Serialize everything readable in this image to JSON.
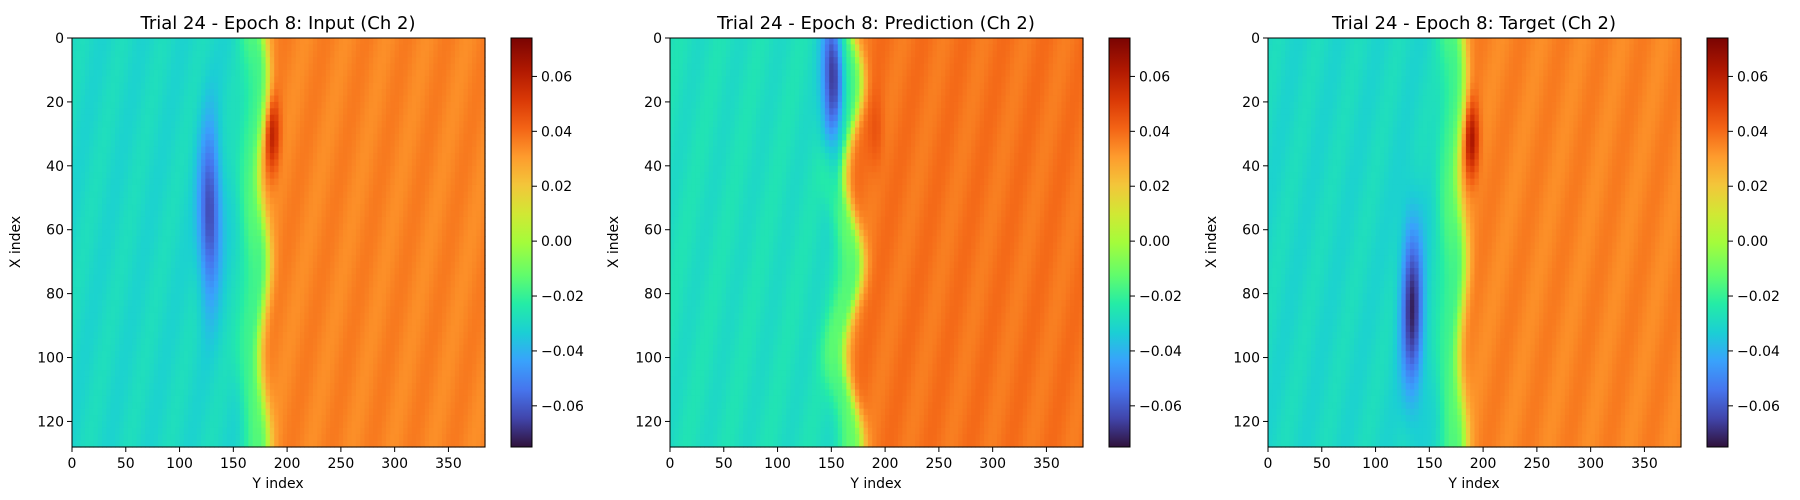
{
  "figure": {
    "panels": [
      {
        "id": "input",
        "title": "Trial 24 - Epoch 8: Input (Ch 2)"
      },
      {
        "id": "prediction",
        "title": "Trial 24 - Epoch 8: Prediction (Ch 2)"
      },
      {
        "id": "target",
        "title": "Trial 24 - Epoch 8: Target (Ch 2)"
      }
    ]
  },
  "chart_data": [
    {
      "type": "heatmap",
      "title": "Trial 24 - Epoch 8: Input (Ch 2)",
      "xlabel": "Y index",
      "ylabel": "X index",
      "xlim": [
        0,
        384
      ],
      "ylim": [
        128,
        0
      ],
      "xticks": [
        0,
        50,
        100,
        150,
        200,
        250,
        300,
        350
      ],
      "yticks": [
        0,
        20,
        40,
        60,
        80,
        100,
        120
      ],
      "colormap": "turbo",
      "colorbar": {
        "vmin": -0.075,
        "vmax": 0.074,
        "ticks": [
          -0.06,
          -0.04,
          -0.02,
          0.0,
          0.02,
          0.04,
          0.06
        ],
        "tick_labels": [
          "−0.06",
          "−0.04",
          "−0.02",
          "0.00",
          "0.02",
          "0.04",
          "0.06"
        ]
      },
      "field": {
        "front_y": 178,
        "front_amplitude": 4,
        "dip_center": [
          55,
          128
        ],
        "dip_value": -0.065,
        "peak_center": [
          30,
          186
        ],
        "peak_value": 0.06,
        "background_left": -0.03,
        "background_right": 0.035
      }
    },
    {
      "type": "heatmap",
      "title": "Trial 24 - Epoch 8: Prediction (Ch 2)",
      "xlabel": "Y index",
      "ylabel": "X index",
      "xlim": [
        0,
        384
      ],
      "ylim": [
        128,
        0
      ],
      "xticks": [
        0,
        50,
        100,
        150,
        200,
        250,
        300,
        350
      ],
      "yticks": [
        0,
        20,
        40,
        60,
        80,
        100,
        120
      ],
      "colormap": "turbo",
      "colorbar": {
        "vmin": -0.075,
        "vmax": 0.074,
        "ticks": [
          -0.06,
          -0.04,
          -0.02,
          0.0,
          0.02,
          0.04,
          0.06
        ],
        "tick_labels": [
          "−0.06",
          "−0.04",
          "−0.02",
          "0.00",
          "0.02",
          "0.04",
          "0.06"
        ]
      },
      "field": {
        "front_y": 170,
        "front_amplitude": 8,
        "dip_center": [
          12,
          152
        ],
        "dip_value": -0.07,
        "peak_center": [
          30,
          192
        ],
        "peak_value": 0.045,
        "background_left": -0.028,
        "background_right": 0.038
      }
    },
    {
      "type": "heatmap",
      "title": "Trial 24 - Epoch 8: Target (Ch 2)",
      "xlabel": "Y index",
      "ylabel": "X index",
      "xlim": [
        0,
        384
      ],
      "ylim": [
        128,
        0
      ],
      "xticks": [
        0,
        50,
        100,
        150,
        200,
        250,
        300,
        350
      ],
      "yticks": [
        0,
        20,
        40,
        60,
        80,
        100,
        120
      ],
      "colormap": "turbo",
      "colorbar": {
        "vmin": -0.075,
        "vmax": 0.074,
        "ticks": [
          -0.06,
          -0.04,
          -0.02,
          0.0,
          0.02,
          0.04,
          0.06
        ],
        "tick_labels": [
          "−0.06",
          "−0.04",
          "−0.02",
          "0.00",
          "0.02",
          "0.04",
          "0.06"
        ]
      },
      "field": {
        "front_y": 180,
        "front_amplitude": 3,
        "dip_center": [
          85,
          134
        ],
        "dip_value": -0.07,
        "peak_center": [
          32,
          189
        ],
        "peak_value": 0.065,
        "background_left": -0.03,
        "background_right": 0.035
      }
    }
  ]
}
